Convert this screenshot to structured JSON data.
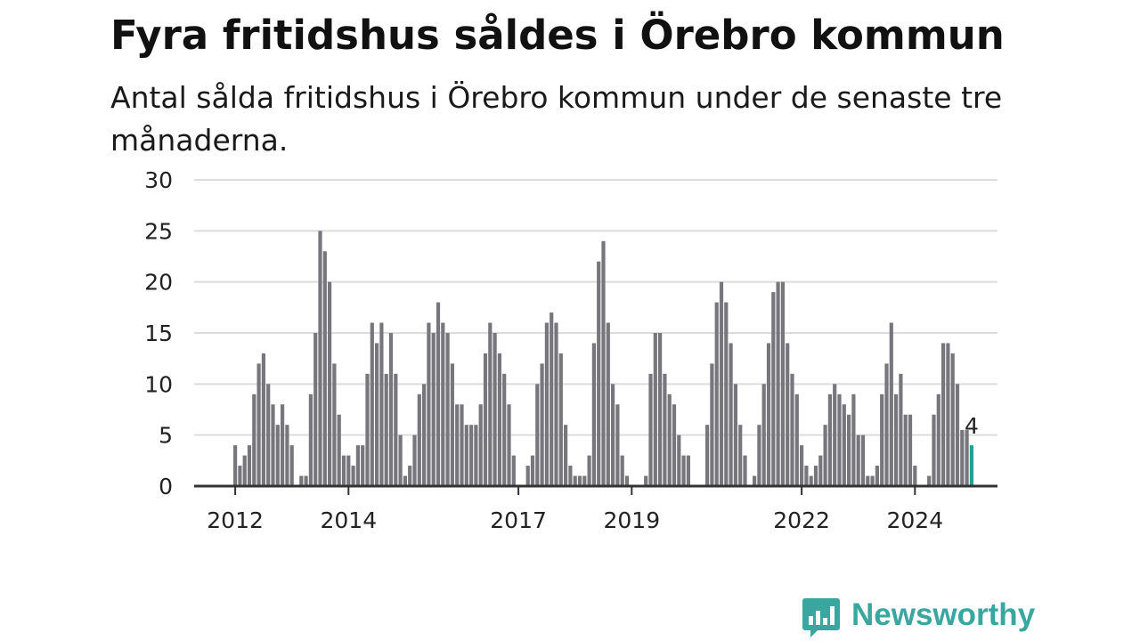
{
  "header": {
    "title": "Fyra fritidshus såldes i Örebro kommun",
    "subtitle": "Antal sålda fritidshus i Örebro kommun under de senaste tre månaderna."
  },
  "brand": {
    "name": "Newsworthy",
    "color": "#3aa6a0",
    "icon": "bar-chart-speech-bubble-icon"
  },
  "chart_data": {
    "type": "bar",
    "start": "2012-01",
    "end": "2025-01",
    "ylim": [
      0,
      30
    ],
    "yticks": [
      0,
      5,
      10,
      15,
      20,
      25,
      30
    ],
    "xticks": [
      {
        "label": "2012",
        "at": "2012-01"
      },
      {
        "label": "2014",
        "at": "2014-01"
      },
      {
        "label": "2017",
        "at": "2017-01"
      },
      {
        "label": "2019",
        "at": "2019-01"
      },
      {
        "label": "2022",
        "at": "2022-01"
      },
      {
        "label": "2024",
        "at": "2024-01"
      }
    ],
    "series": [
      {
        "values": [
          4,
          2,
          3,
          4,
          9,
          12,
          13,
          10,
          8,
          6,
          8,
          6,
          4,
          0,
          1,
          1,
          9,
          15,
          25,
          23,
          20,
          12,
          7,
          3,
          3,
          2,
          4,
          4,
          11,
          16,
          14,
          16,
          11,
          15,
          11,
          5,
          1,
          2,
          5,
          9,
          10,
          16,
          15,
          18,
          16,
          15,
          12,
          8,
          8,
          6,
          6,
          6,
          8,
          13,
          16,
          15,
          13,
          11,
          8,
          3,
          0,
          0,
          2,
          3,
          10,
          12,
          16,
          17,
          16,
          13,
          6,
          2,
          1,
          1,
          1,
          3,
          14,
          22,
          24,
          16,
          10,
          8,
          3,
          1,
          0,
          0,
          0,
          1,
          11,
          15,
          15,
          11,
          9,
          8,
          5,
          3,
          3,
          0,
          0,
          0,
          6,
          12,
          18,
          20,
          18,
          14,
          10,
          6,
          3,
          0,
          1,
          6,
          10,
          14,
          19,
          20,
          20,
          14,
          11,
          9,
          4,
          2,
          1,
          2,
          3,
          6,
          9,
          10,
          9,
          8,
          7,
          9,
          5,
          5,
          1,
          1,
          2,
          9,
          12,
          16,
          9,
          11,
          7,
          7,
          2,
          0,
          0,
          1,
          7,
          9,
          14,
          14,
          13,
          10,
          5.5,
          5.5,
          4
        ]
      }
    ],
    "bar_color": "#77767c",
    "highlight_color": "#2a9d98",
    "highlight_label": "4",
    "grid": true,
    "gridline_color": "#dcdcdc",
    "axis_color": "#333333"
  }
}
